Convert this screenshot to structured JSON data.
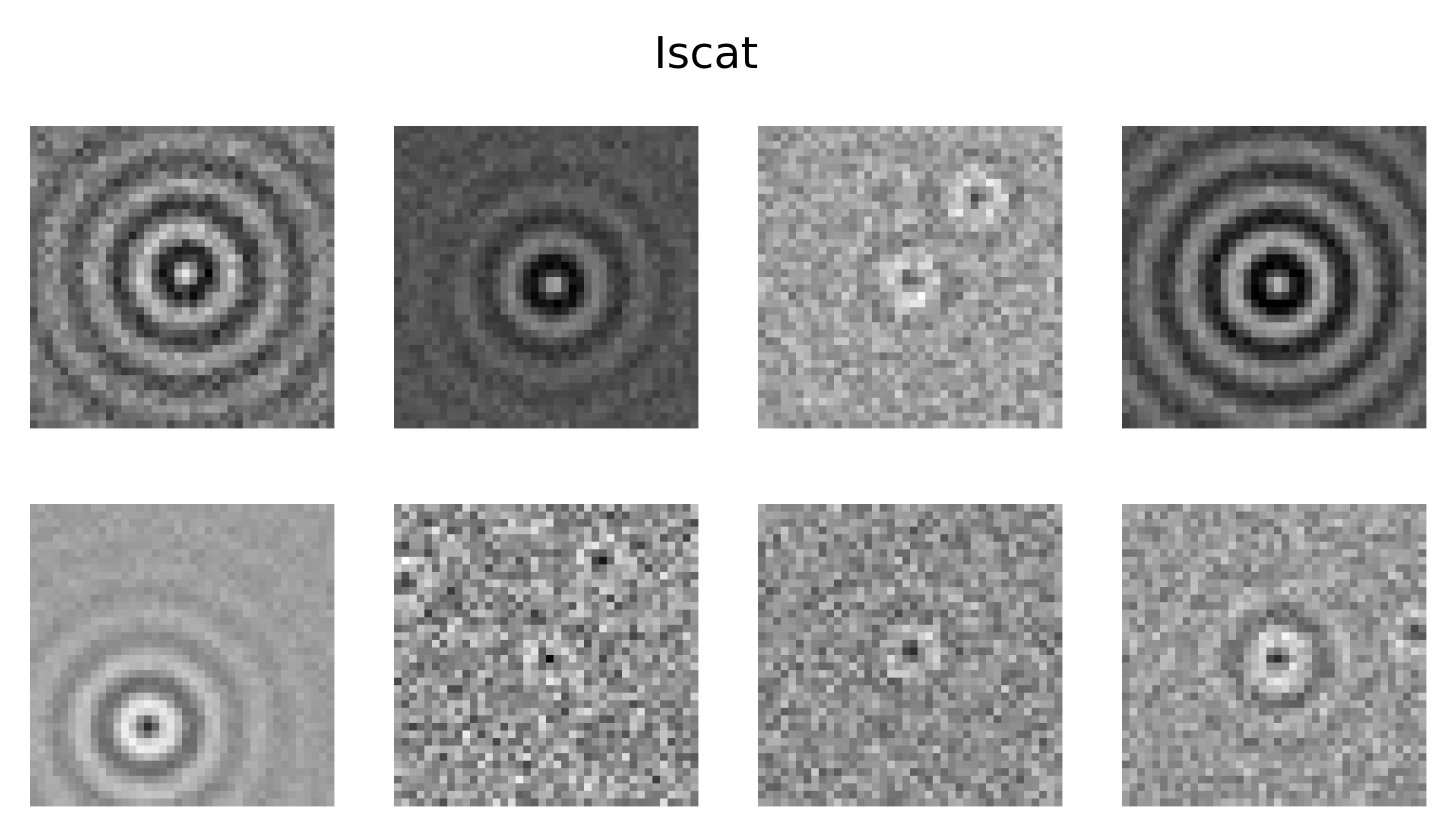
{
  "title": "Iscat"
}
